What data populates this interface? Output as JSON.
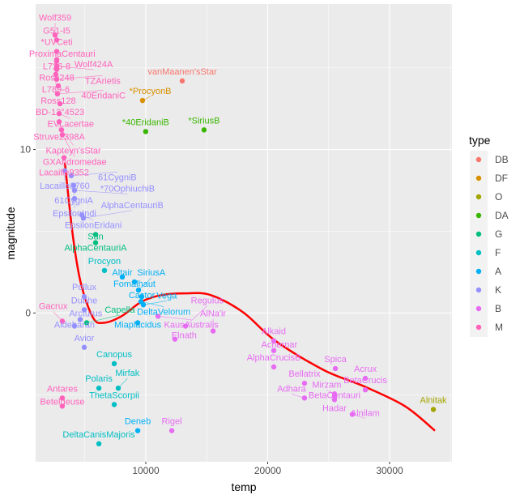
{
  "chart_data": {
    "type": "scatter",
    "title": "",
    "xlabel": "temp",
    "ylabel": "magnitude",
    "xlim": [
      963,
      35116
    ],
    "ylim": [
      -9.1,
      18.9
    ],
    "xticks": [
      10000,
      20000,
      30000
    ],
    "yticks": [
      0,
      10
    ],
    "grid": true,
    "legend": {
      "title": "type",
      "position": "right",
      "entries": [
        {
          "name": "DB",
          "color": "#F8766D"
        },
        {
          "name": "DF",
          "color": "#D89000"
        },
        {
          "name": "O",
          "color": "#A3A500"
        },
        {
          "name": "DA",
          "color": "#39B600"
        },
        {
          "name": "G",
          "color": "#00BF7D"
        },
        {
          "name": "F",
          "color": "#00BFC4"
        },
        {
          "name": "A",
          "color": "#00B0F6"
        },
        {
          "name": "K",
          "color": "#9590FF"
        },
        {
          "name": "B",
          "color": "#E76BF3"
        },
        {
          "name": "M",
          "color": "#FF62BC"
        }
      ]
    },
    "points": [
      {
        "name": "G51-I5",
        "temp": 2690,
        "magnitude": 16.7,
        "type": "M"
      },
      {
        "name": "Wolf359",
        "temp": 2560,
        "magnitude": 17.0,
        "type": "M"
      },
      {
        "name": "*UVCeti",
        "temp": 2690,
        "magnitude": 16.0,
        "type": "M"
      },
      {
        "name": "ProximaCentauri",
        "temp": 2690,
        "magnitude": 15.5,
        "type": "M"
      },
      {
        "name": "L726-8",
        "temp": 2690,
        "magnitude": 15.4,
        "type": "M"
      },
      {
        "name": "Wolf424A",
        "temp": 2690,
        "magnitude": 15.1,
        "type": "M"
      },
      {
        "name": "Ross248",
        "temp": 2690,
        "magnitude": 14.9,
        "type": "M"
      },
      {
        "name": "L789-6",
        "temp": 2620,
        "magnitude": 14.6,
        "type": "M"
      },
      {
        "name": "TZArietis",
        "temp": 2690,
        "magnitude": 14.3,
        "type": "M"
      },
      {
        "name": "Ross128",
        "temp": 2820,
        "magnitude": 13.9,
        "type": "M"
      },
      {
        "name": "40EridaniC",
        "temp": 2750,
        "magnitude": 13.4,
        "type": "M"
      },
      {
        "name": "BD-12°4523",
        "temp": 2960,
        "magnitude": 12.8,
        "type": "M"
      },
      {
        "name": "EVLacertae",
        "temp": 2890,
        "magnitude": 12.2,
        "type": "M"
      },
      {
        "name": "Struve2398A",
        "temp": 2890,
        "magnitude": 11.7,
        "type": "M"
      },
      {
        "name": "Kapteyn'sStar",
        "temp": 3090,
        "magnitude": 11.2,
        "type": "M"
      },
      {
        "name": "GXAndromedae",
        "temp": 3150,
        "magnitude": 10.9,
        "type": "M"
      },
      {
        "name": "Lacaille9352",
        "temp": 3290,
        "magnitude": 9.5,
        "type": "M"
      },
      {
        "name": "Lacaille8760",
        "temp": 3350,
        "magnitude": 8.7,
        "type": "K"
      },
      {
        "name": "61CygniB",
        "temp": 3890,
        "magnitude": 8.4,
        "type": "K"
      },
      {
        "name": "61CygniA",
        "temp": 4090,
        "magnitude": 7.8,
        "type": "K"
      },
      {
        "name": "*70OphiuchiB",
        "temp": 4150,
        "magnitude": 7.5,
        "type": "K"
      },
      {
        "name": "EpsilonIndi",
        "temp": 4150,
        "magnitude": 7.0,
        "type": "K"
      },
      {
        "name": "EpsilonEridani",
        "temp": 4750,
        "magnitude": 6.0,
        "type": "K"
      },
      {
        "name": "AlphaCentauriB",
        "temp": 4880,
        "magnitude": 5.8,
        "type": "K"
      },
      {
        "name": "Pollux",
        "temp": 4950,
        "magnitude": 1.0,
        "type": "K"
      },
      {
        "name": "Dubhe",
        "temp": 4950,
        "magnitude": 0.2,
        "type": "K"
      },
      {
        "name": "Arcturus",
        "temp": 4620,
        "magnitude": -0.4,
        "type": "K"
      },
      {
        "name": "Aldebaran",
        "temp": 4150,
        "magnitude": -0.8,
        "type": "K"
      },
      {
        "name": "Avior",
        "temp": 4950,
        "magnitude": -2.1,
        "type": "K"
      },
      {
        "name": "Sun",
        "temp": 5880,
        "magnitude": 4.8,
        "type": "G"
      },
      {
        "name": "AlphaCentauriA",
        "temp": 5880,
        "magnitude": 4.3,
        "type": "G"
      },
      {
        "name": "Capella",
        "temp": 5150,
        "magnitude": -0.6,
        "type": "G"
      },
      {
        "name": "Procyon",
        "temp": 6610,
        "magnitude": 2.6,
        "type": "F"
      },
      {
        "name": "Canopus",
        "temp": 7410,
        "magnitude": -3.1,
        "type": "F"
      },
      {
        "name": "Polaris",
        "temp": 6150,
        "magnitude": -4.6,
        "type": "F"
      },
      {
        "name": "Mirfak",
        "temp": 7740,
        "magnitude": -4.6,
        "type": "F"
      },
      {
        "name": "ThetaScorpii",
        "temp": 7410,
        "magnitude": -5.6,
        "type": "F"
      },
      {
        "name": "DeltaCanisMajoris",
        "temp": 6150,
        "magnitude": -8.0,
        "type": "F"
      },
      {
        "name": "Altair",
        "temp": 8070,
        "magnitude": 2.2,
        "type": "A"
      },
      {
        "name": "Fomalhaut",
        "temp": 9070,
        "magnitude": 1.9,
        "type": "A"
      },
      {
        "name": "SiriusA",
        "temp": 9400,
        "magnitude": 1.4,
        "type": "A"
      },
      {
        "name": "Castor",
        "temp": 9670,
        "magnitude": 1.0,
        "type": "A"
      },
      {
        "name": "DeltaVelorum",
        "temp": 9600,
        "magnitude": 0.7,
        "type": "A"
      },
      {
        "name": "Vega",
        "temp": 9800,
        "magnitude": 0.5,
        "type": "A"
      },
      {
        "name": "Miaplacidus",
        "temp": 9340,
        "magnitude": -0.6,
        "type": "A"
      },
      {
        "name": "Deneb",
        "temp": 9340,
        "magnitude": -7.2,
        "type": "A"
      },
      {
        "name": "KausAustralis",
        "temp": 11000,
        "magnitude": -0.2,
        "type": "B"
      },
      {
        "name": "Regulus",
        "temp": 13260,
        "magnitude": -0.8,
        "type": "B"
      },
      {
        "name": "Elnath",
        "temp": 12390,
        "magnitude": -1.6,
        "type": "B"
      },
      {
        "name": "AlNa'ir",
        "temp": 15520,
        "magnitude": -1.1,
        "type": "B"
      },
      {
        "name": "Alkaid",
        "temp": 20500,
        "magnitude": -1.7,
        "type": "B"
      },
      {
        "name": "Achernar",
        "temp": 20500,
        "magnitude": -2.3,
        "type": "B"
      },
      {
        "name": "AlphaCrucisB",
        "temp": 20500,
        "magnitude": -3.3,
        "type": "B"
      },
      {
        "name": "Spica",
        "temp": 25550,
        "magnitude": -3.4,
        "type": "B"
      },
      {
        "name": "Bellatrix",
        "temp": 23020,
        "magnitude": -4.3,
        "type": "B"
      },
      {
        "name": "Acrux",
        "temp": 28010,
        "magnitude": -4.0,
        "type": "B"
      },
      {
        "name": "BetaCrucis",
        "temp": 28010,
        "magnitude": -4.7,
        "type": "B"
      },
      {
        "name": "Mirzam",
        "temp": 25480,
        "magnitude": -4.95,
        "type": "B"
      },
      {
        "name": "BetaCentauri",
        "temp": 25480,
        "magnitude": -5.1,
        "type": "B"
      },
      {
        "name": "Hadar",
        "temp": 25480,
        "magnitude": -5.3,
        "type": "B"
      },
      {
        "name": "Adhara",
        "temp": 23020,
        "magnitude": -5.2,
        "type": "B"
      },
      {
        "name": "Alnilam",
        "temp": 26940,
        "magnitude": -6.2,
        "type": "B"
      },
      {
        "name": "Rigel",
        "temp": 12130,
        "magnitude": -7.2,
        "type": "B"
      },
      {
        "name": "Gacrux",
        "temp": 3150,
        "magnitude": -0.5,
        "type": "M"
      },
      {
        "name": "Antares",
        "temp": 3150,
        "magnitude": -5.2,
        "type": "M"
      },
      {
        "name": "Betelgeuse",
        "temp": 3150,
        "magnitude": -5.7,
        "type": "M"
      },
      {
        "name": "vanMaanen'sStar",
        "temp": 12990,
        "magnitude": 14.2,
        "type": "DB"
      },
      {
        "name": "*ProcyonB",
        "temp": 9730,
        "magnitude": 13.0,
        "type": "DF"
      },
      {
        "name": "*40EridaniB",
        "temp": 9990,
        "magnitude": 11.1,
        "type": "DA"
      },
      {
        "name": "*SiriusB",
        "temp": 14780,
        "magnitude": 11.2,
        "type": "DA"
      },
      {
        "name": "Alnitak",
        "temp": 33590,
        "magnitude": -5.9,
        "type": "O"
      }
    ],
    "fit": {
      "color": "#FF0000",
      "points": [
        [
          3360,
          9.2
        ],
        [
          4020,
          4.7
        ],
        [
          4680,
          1.8
        ],
        [
          5680,
          -0.3
        ],
        [
          6540,
          -0.6
        ],
        [
          8000,
          -0.2
        ],
        [
          9670,
          0.7
        ],
        [
          11330,
          1.1
        ],
        [
          13320,
          1.2
        ],
        [
          15310,
          1.1
        ],
        [
          17970,
          0.05
        ],
        [
          20630,
          -1.7
        ],
        [
          24620,
          -3.5
        ],
        [
          27940,
          -4.5
        ],
        [
          31260,
          -5.7
        ],
        [
          33720,
          -7.2
        ]
      ]
    }
  }
}
